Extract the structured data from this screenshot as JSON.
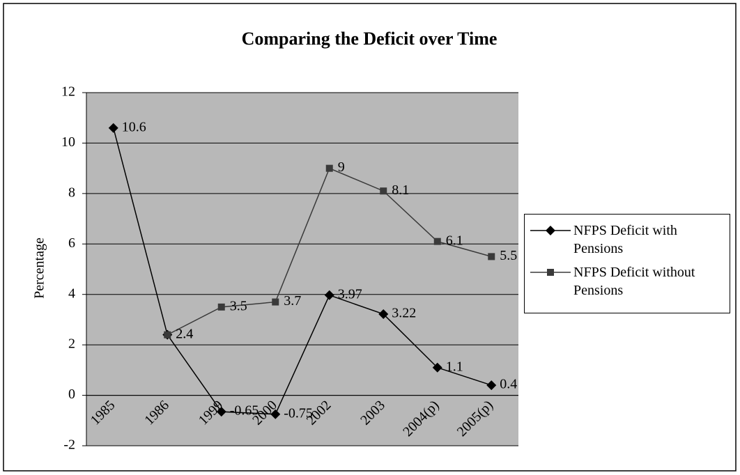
{
  "chart_data": {
    "type": "line",
    "title": "Comparing the Deficit over Time",
    "y_label": "Percentage",
    "categories": [
      "1985",
      "1986",
      "1999",
      "2000",
      "2002",
      "2003",
      "2004(p)",
      "2005(p)"
    ],
    "series": [
      {
        "name": "NFPS Deficit with Pensions",
        "color": "#000000",
        "marker": "diamond",
        "values": [
          10.6,
          2.4,
          -0.65,
          -0.75,
          3.97,
          3.22,
          1.1,
          0.4
        ]
      },
      {
        "name": "NFPS Deficit without Pensions",
        "color": "#3a3a3a",
        "marker": "square",
        "values": [
          null,
          2.4,
          3.5,
          3.7,
          9,
          8.1,
          6.1,
          5.5
        ]
      }
    ],
    "ylim": [
      -2,
      12
    ],
    "yticks": [
      -2,
      0,
      2,
      4,
      6,
      8,
      10,
      12
    ],
    "grid": true,
    "legend": "right"
  }
}
